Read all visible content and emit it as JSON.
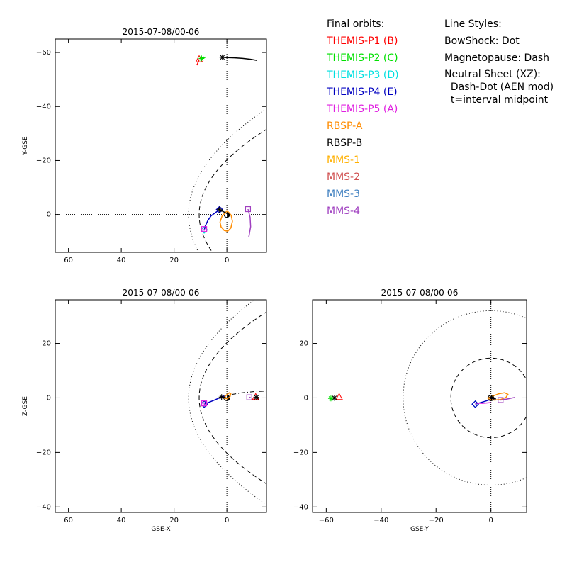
{
  "legend": {
    "orbits_title": "Final orbits:",
    "spacecraft": [
      {
        "label": "THEMIS-P1 (B)",
        "color": "#ff0000"
      },
      {
        "label": "THEMIS-P2 (C)",
        "color": "#00e000"
      },
      {
        "label": "THEMIS-P3 (D)",
        "color": "#00e0e0"
      },
      {
        "label": "THEMIS-P4 (E)",
        "color": "#0000c0"
      },
      {
        "label": "THEMIS-P5 (A)",
        "color": "#e020e0"
      },
      {
        "label": "RBSP-A",
        "color": "#ff8c00"
      },
      {
        "label": "RBSP-B",
        "color": "#000000"
      },
      {
        "label": "MMS-1",
        "color": "#ffb000"
      },
      {
        "label": "MMS-2",
        "color": "#d05050"
      },
      {
        "label": "MMS-3",
        "color": "#4080c0"
      },
      {
        "label": "MMS-4",
        "color": "#a040c0"
      }
    ],
    "styles_title": "Line Styles:",
    "styles": [
      "BowShock: Dot",
      "Magnetopause: Dash",
      "Neutral Sheet (XZ):",
      "  Dash-Dot (AEN mod)",
      "  t=interval midpoint"
    ]
  },
  "chart_data": [
    {
      "type": "line",
      "title": "2015-07-08/00-06",
      "xlabel": "",
      "ylabel": "Y-GSE",
      "xlim": [
        65,
        -15
      ],
      "ylim": [
        14,
        -65
      ],
      "xticks": [
        60,
        40,
        20,
        0
      ],
      "yticks": [
        -60,
        -40,
        -20,
        0
      ],
      "orbits": [
        {
          "name": "THEMIS-P1 (B)",
          "color": "#ff0000",
          "x": [
            10.5,
            11.3
          ],
          "y": [
            -57.5,
            -55.3
          ],
          "end_marker": "triangle"
        },
        {
          "name": "THEMIS-P2 (C)",
          "color": "#00e000",
          "x": [
            9.6,
            8.0
          ],
          "y": [
            -57.8,
            -58.3
          ],
          "end_marker": "asterisk"
        },
        {
          "name": "THEMIS-P3 (D)",
          "color": "#00e0e0",
          "x": [
            8.6
          ],
          "y": [
            5.7
          ],
          "end_marker": "diamond"
        },
        {
          "name": "THEMIS-P4 (E)",
          "color": "#0000c0",
          "x": [
            2.8,
            4.2,
            6.0,
            7.2,
            8.2,
            8.6
          ],
          "y": [
            -1.8,
            -0.8,
            0.5,
            2.2,
            4.3,
            5.8
          ],
          "end_marker": "diamond"
        },
        {
          "name": "THEMIS-P5 (A)",
          "color": "#e020e0",
          "x": [
            8.6,
            8.6
          ],
          "y": [
            5.4,
            6.0
          ],
          "end_marker": "square"
        },
        {
          "name": "RBSP-A",
          "color": "#ff8c00",
          "x": [
            0,
            1.8,
            2.6,
            2.2,
            1.0,
            -0.3,
            -1.5,
            -2.1,
            -1.6,
            -0.5,
            0
          ],
          "y": [
            -1.2,
            0.5,
            2.8,
            4.6,
            5.9,
            6.2,
            5.0,
            2.5,
            0.2,
            -1.0,
            -1.2
          ],
          "end_marker": "none"
        },
        {
          "name": "RBSP-B",
          "color": "#000000",
          "x": [
            2.8,
            0.8,
            -0.3
          ],
          "y": [
            -1.8,
            -0.8,
            -0.2
          ],
          "end_marker": "asterisk"
        },
        {
          "name": "RBSP-B",
          "color": "#000000",
          "x": [
            1.7,
            0,
            -3,
            -6,
            -9,
            -11.3
          ],
          "y": [
            -58.2,
            -58.1,
            -58.0,
            -57.8,
            -57.5,
            -57.1
          ],
          "end_marker": "asterisk"
        },
        {
          "name": "MMS-4",
          "color": "#a040c0",
          "x": [
            -8.0,
            -8.8,
            -9.0,
            -8.3
          ],
          "y": [
            -2.0,
            1.0,
            4.5,
            8.4
          ],
          "end_marker": "square"
        }
      ],
      "reference_curves": [
        {
          "name": "BowShock",
          "style": "dot",
          "x0": 14.5,
          "a": 26.0,
          "axis": "y"
        },
        {
          "name": "Magnetopause",
          "style": "dash",
          "x0": 10.5,
          "a": 19.5,
          "axis": "y"
        }
      ]
    },
    {
      "type": "line",
      "title": "2015-07-08/00-06",
      "xlabel": "GSE-X",
      "ylabel": "Z-GSE",
      "xlim": [
        65,
        -15
      ],
      "ylim": [
        -42,
        36
      ],
      "xticks": [
        60,
        40,
        20,
        0
      ],
      "yticks": [
        -40,
        -20,
        0,
        20
      ],
      "orbits": [
        {
          "name": "THEMIS-P3 (D)",
          "color": "#00e0e0",
          "x": [
            8.6
          ],
          "y": [
            -2.3
          ],
          "end_marker": "diamond"
        },
        {
          "name": "THEMIS-P4 (E)",
          "color": "#0000c0",
          "x": [
            8.6,
            6.5,
            4.5,
            2.8,
            1.0
          ],
          "y": [
            -2.3,
            -1.5,
            -0.7,
            0.0,
            0.7
          ],
          "end_marker": "diamond"
        },
        {
          "name": "THEMIS-P5 (A)",
          "color": "#e020e0",
          "x": [
            8.6,
            8.6
          ],
          "y": [
            -2.0,
            -2.4
          ],
          "end_marker": "square"
        },
        {
          "name": "RBSP-A",
          "color": "#ff8c00",
          "x": [
            1.2,
            0.0,
            -1.0,
            -1.5,
            -1.2,
            -0.2,
            0.8,
            1.2
          ],
          "y": [
            0.0,
            1.2,
            1.9,
            1.5,
            0.5,
            -0.3,
            -0.2,
            0.0
          ],
          "end_marker": "none"
        },
        {
          "name": "RBSP-B",
          "color": "#000000",
          "x": [
            2.0,
            1.0,
            0.2
          ],
          "y": [
            0.3,
            0.2,
            0.0
          ],
          "end_marker": "asterisk"
        },
        {
          "name": "MMS-4",
          "color": "#a040c0",
          "x": [
            -8.5,
            -9.0
          ],
          "y": [
            0.2,
            0.2
          ],
          "end_marker": "square"
        },
        {
          "name": "THEMIS-P1 (B)",
          "color": "#ff0000",
          "x": [
            -10.9
          ],
          "y": [
            0.3
          ],
          "end_marker": "triangle"
        },
        {
          "name": "RBSP-B",
          "color": "#000000",
          "x": [
            -11.2
          ],
          "y": [
            0.2
          ],
          "end_marker": "asterisk"
        }
      ],
      "reference_curves": [
        {
          "name": "BowShock",
          "style": "dot",
          "x0": 14.5,
          "a": 26.0,
          "axis": "y"
        },
        {
          "name": "Magnetopause",
          "style": "dash",
          "x0": 10.5,
          "a": 19.5,
          "axis": "y"
        },
        {
          "name": "Neutral Sheet",
          "style": "dashdot",
          "x": [
            1.5,
            -2,
            -6,
            -10,
            -15
          ],
          "y": [
            0.5,
            1.3,
            1.9,
            2.3,
            2.5
          ]
        }
      ]
    },
    {
      "type": "line",
      "title": "2015-07-08/00-06",
      "xlabel": "GSE-Y",
      "ylabel": "",
      "xlim": [
        -65,
        13
      ],
      "ylim": [
        -42,
        36
      ],
      "xticks": [
        -60,
        -40,
        -20,
        0
      ],
      "yticks": [
        -40,
        -20,
        0,
        20
      ],
      "orbits": [
        {
          "name": "THEMIS-P1 (B)",
          "color": "#ff0000",
          "x": [
            -55.3
          ],
          "y": [
            0.3
          ],
          "end_marker": "triangle"
        },
        {
          "name": "THEMIS-P2 (C)",
          "color": "#00e000",
          "x": [
            -58.3,
            -57.5
          ],
          "y": [
            -0.2,
            0.0
          ],
          "end_marker": "asterisk"
        },
        {
          "name": "RBSP-B",
          "color": "#000000",
          "x": [
            -57.0
          ],
          "y": [
            0.0
          ],
          "end_marker": "asterisk"
        },
        {
          "name": "THEMIS-P3 (D)",
          "color": "#00e0e0",
          "x": [
            -5.7
          ],
          "y": [
            -2.3
          ],
          "end_marker": "diamond"
        },
        {
          "name": "THEMIS-P4 (E)",
          "color": "#0000c0",
          "x": [
            -5.7,
            -4.0,
            -2.0,
            0.0,
            1.8
          ],
          "y": [
            -2.3,
            -1.8,
            -1.2,
            -0.5,
            -0.2
          ],
          "end_marker": "diamond"
        },
        {
          "name": "THEMIS-P5 (A)",
          "color": "#e020e0",
          "x": [
            -5.7,
            -3.0,
            0.0
          ],
          "y": [
            -1.9,
            -2.0,
            -1.7
          ],
          "end_marker": "none"
        },
        {
          "name": "RBSP-A",
          "color": "#ff8c00",
          "x": [
            -1.2,
            0.5,
            2.8,
            5.0,
            6.2,
            5.5,
            3.5,
            1.2,
            -0.5,
            -1.2
          ],
          "y": [
            0.0,
            0.6,
            1.5,
            1.9,
            1.3,
            0.2,
            -0.6,
            -0.8,
            -0.5,
            0.0
          ],
          "end_marker": "none"
        },
        {
          "name": "RBSP-B",
          "color": "#000000",
          "x": [
            0.2,
            1.0,
            1.8
          ],
          "y": [
            0.1,
            -0.3,
            -0.4
          ],
          "end_marker": "asterisk"
        },
        {
          "name": "MMS-4",
          "color": "#a040c0",
          "x": [
            3.5,
            6.0,
            8.8
          ],
          "y": [
            -0.8,
            -0.4,
            0.2
          ],
          "end_marker": "square"
        }
      ],
      "reference_curves": [
        {
          "name": "BowShock",
          "style": "dot",
          "r": 32.0
        },
        {
          "name": "Magnetopause",
          "style": "dash",
          "r": 14.6
        }
      ]
    }
  ]
}
